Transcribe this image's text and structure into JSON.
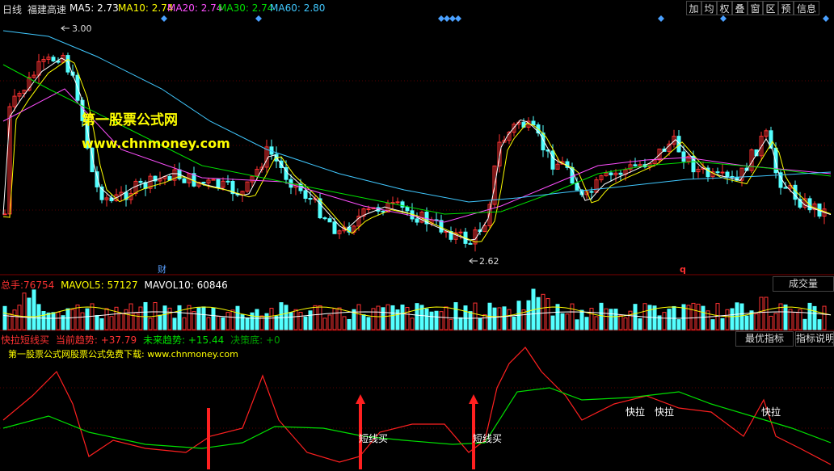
{
  "header": {
    "period": "日线",
    "stock_name": "福建高速",
    "ma": [
      {
        "label": "MA5:",
        "value": "2.73",
        "color": "#ffffff"
      },
      {
        "label": "MA10:",
        "value": "2.74",
        "color": "#ffff00"
      },
      {
        "label": "MA20:",
        "value": "2.74",
        "color": "#ff4fff"
      },
      {
        "label": "MA30:",
        "value": "2.74",
        "color": "#00e000"
      },
      {
        "label": "MA60:",
        "value": "2.80",
        "color": "#40c8ff"
      }
    ],
    "buttons": [
      "加",
      "均",
      "权",
      "叠",
      "窗",
      "区",
      "预",
      "信息"
    ]
  },
  "price_panel": {
    "high_label": "3.00",
    "low_label": "2.62",
    "marker_cai": "财",
    "marker_q": "q",
    "watermark_title": "第一股票公式网",
    "watermark_url": "www.chnmoney.com"
  },
  "volume_panel": {
    "label_total": "总手:",
    "total": "76754",
    "label_mavol5": "MAVOL5:",
    "mavol5": "57127",
    "label_mavol10": "MAVOL10:",
    "mavol10": "60846",
    "button": "成交量"
  },
  "indicator_panel": {
    "name": "快拉短线买",
    "label_trend": "当前趋势:",
    "trend": "+37.79",
    "label_future": "未来趋势:",
    "future": "+15.44",
    "label_bottom": "决策底:",
    "bottom": "+0",
    "subtitle": "第一股票公式网股票公式免费下载: www.chnmoney.com",
    "btn_best": "最优指标",
    "btn_explain": "指标说明",
    "signal_short_buy": "短线买",
    "signal_quick_pull": "快拉"
  },
  "colors": {
    "up": "#ff3232",
    "down": "#54ffff",
    "ma5": "#ffffff",
    "ma10": "#ffff00",
    "ma20": "#ff4fff",
    "ma30": "#00e000",
    "ma60": "#40c8ff",
    "red_line": "#ff2020",
    "green_line": "#00e000"
  }
}
